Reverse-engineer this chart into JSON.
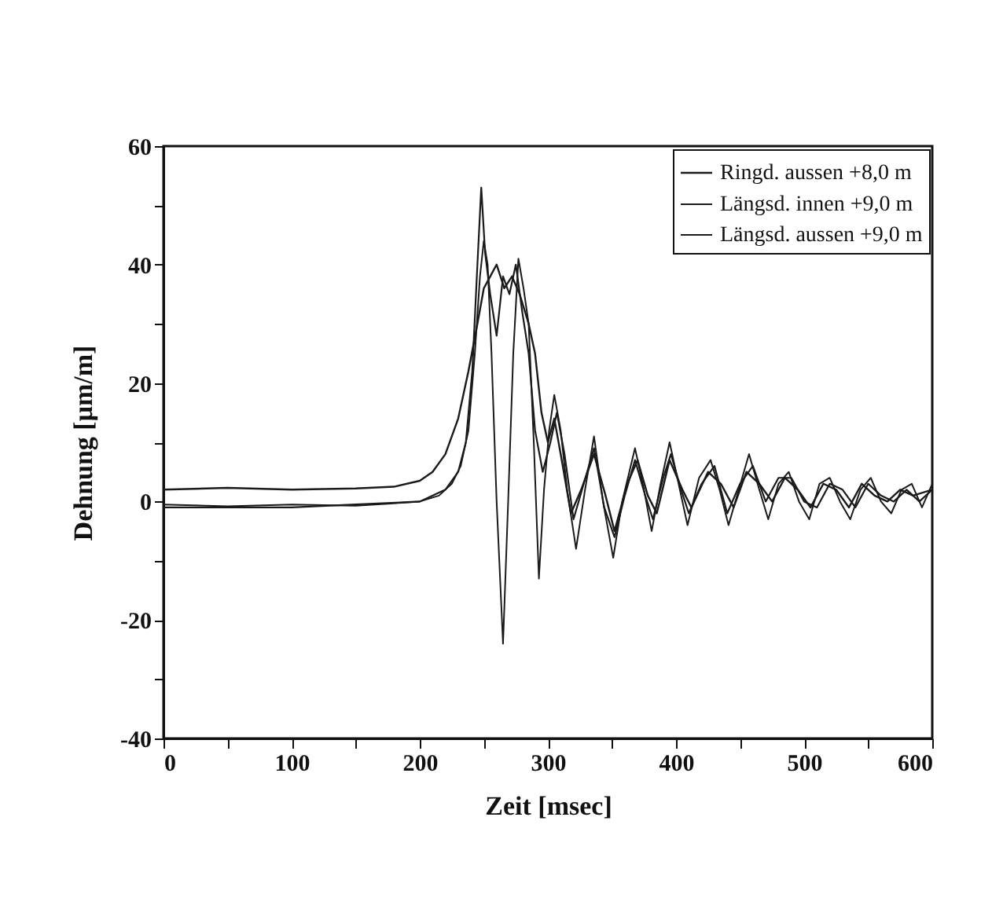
{
  "chart_data": {
    "type": "line",
    "xlabel": "Zeit    [msec]",
    "ylabel": "Dehnung  [μm/m]",
    "xlim": [
      0,
      600
    ],
    "ylim": [
      -40,
      60
    ],
    "xticks": [
      0,
      {
        "value": 50,
        "label": null
      },
      100,
      {
        "value": 150,
        "label": null
      },
      200,
      {
        "value": 250,
        "label": null
      },
      300,
      {
        "value": 350,
        "label": null
      },
      400,
      {
        "value": 450,
        "label": null
      },
      500,
      {
        "value": 550,
        "label": null
      },
      600
    ],
    "yticks": [
      -40,
      {
        "value": -30,
        "label": null
      },
      -20,
      {
        "value": -10,
        "label": null
      },
      0,
      {
        "value": 10,
        "label": null
      },
      20,
      {
        "value": 30,
        "label": null
      },
      40,
      {
        "value": 50,
        "label": null
      },
      60
    ],
    "grid": false,
    "legend": "top right",
    "series": [
      {
        "name": "Ringd. aussen +8,0 m",
        "color": "#1a1a1a",
        "x": [
          0,
          50,
          100,
          150,
          180,
          200,
          210,
          220,
          230,
          238,
          245,
          250,
          255,
          260,
          266,
          272,
          278,
          285,
          290,
          295,
          300,
          305,
          310,
          318,
          326,
          336,
          345,
          352,
          362,
          370,
          378,
          385,
          395,
          405,
          412,
          425,
          435,
          445,
          455,
          465,
          475,
          485,
          495,
          505,
          515,
          525,
          535,
          545,
          555,
          565,
          575,
          585,
          600
        ],
        "values": [
          2,
          2.3,
          2,
          2.2,
          2.5,
          3.5,
          5,
          8,
          14,
          22,
          30,
          36,
          38,
          40,
          36,
          38,
          35,
          30,
          25,
          15,
          10,
          14,
          8,
          -2,
          2,
          8,
          1,
          -5,
          3,
          7,
          1,
          -2,
          7,
          2,
          -1,
          5,
          3,
          -1,
          5,
          3,
          0,
          4,
          2,
          -1,
          3,
          2,
          -1,
          3,
          1,
          0,
          2,
          1,
          2
        ]
      },
      {
        "name": "Längsd. innen +9,0 m",
        "color": "#1a1a1a",
        "x": [
          0,
          100,
          150,
          200,
          220,
          230,
          236,
          241,
          245,
          248,
          251,
          255,
          260,
          265,
          270,
          275,
          280,
          285,
          290,
          296,
          302,
          307,
          313,
          320,
          328,
          336,
          344,
          352,
          360,
          368,
          376,
          382,
          390,
          396,
          404,
          410,
          420,
          430,
          440,
          450,
          460,
          470,
          480,
          490,
          500,
          510,
          520,
          530,
          540,
          550,
          560,
          570,
          580,
          590,
          600
        ],
        "values": [
          -1,
          -1,
          -0.5,
          0,
          2,
          5,
          10,
          22,
          40,
          53,
          42,
          35,
          28,
          38,
          35,
          40,
          32,
          25,
          12,
          5,
          10,
          15,
          8,
          -3,
          3,
          9,
          -1,
          -6,
          1,
          7,
          1,
          -3,
          4,
          8,
          2,
          -2,
          3,
          6,
          -2,
          3,
          6,
          0,
          4,
          4,
          0,
          -1,
          3,
          2,
          -1,
          3,
          1,
          0,
          2,
          0,
          2
        ]
      },
      {
        "name": "Längsd. aussen +9,0 m",
        "color": "#1a1a1a",
        "x": [
          0,
          50,
          100,
          150,
          180,
          200,
          215,
          225,
          232,
          238,
          243,
          247,
          250,
          253,
          256,
          260,
          265,
          269,
          273,
          277,
          281,
          285,
          289,
          293,
          297,
          301,
          305,
          310,
          315,
          322,
          329,
          336,
          343,
          351,
          358,
          368,
          375,
          381,
          388,
          395,
          402,
          409,
          418,
          427,
          434,
          441,
          449,
          457,
          465,
          472,
          480,
          488,
          496,
          504,
          512,
          520,
          528,
          536,
          544,
          552,
          560,
          568,
          576,
          584,
          592,
          600
        ],
        "values": [
          -0.5,
          -0.8,
          -0.5,
          -0.7,
          -0.3,
          0,
          1,
          3,
          6,
          12,
          25,
          38,
          44,
          40,
          25,
          0,
          -24,
          0,
          25,
          41,
          36,
          30,
          10,
          -13,
          2,
          12,
          18,
          12,
          2,
          -8,
          2,
          11,
          0,
          -9.5,
          0,
          9,
          2,
          -5,
          3,
          10,
          3,
          -4,
          4,
          7,
          2,
          -4,
          2,
          8,
          2,
          -3,
          3,
          5,
          0,
          -3,
          3,
          4,
          0,
          -3,
          2,
          4,
          0,
          -2,
          2,
          3,
          -1,
          3
        ]
      }
    ]
  }
}
